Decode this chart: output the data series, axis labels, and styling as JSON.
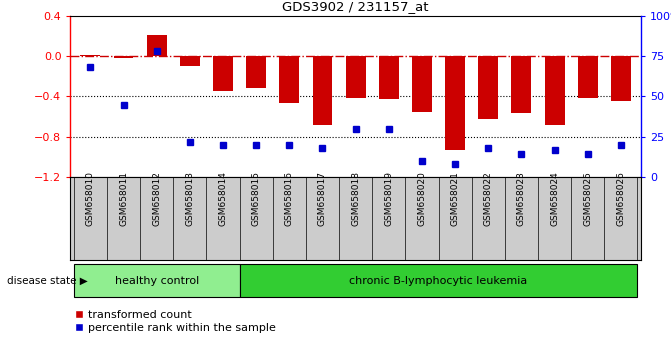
{
  "title": "GDS3902 / 231157_at",
  "samples": [
    "GSM658010",
    "GSM658011",
    "GSM658012",
    "GSM658013",
    "GSM658014",
    "GSM658015",
    "GSM658016",
    "GSM658017",
    "GSM658018",
    "GSM658019",
    "GSM658020",
    "GSM658021",
    "GSM658022",
    "GSM658023",
    "GSM658024",
    "GSM658025",
    "GSM658026"
  ],
  "red_values": [
    0.01,
    -0.02,
    0.21,
    -0.1,
    -0.35,
    -0.32,
    -0.46,
    -0.68,
    -0.42,
    -0.43,
    -0.55,
    -0.93,
    -0.62,
    -0.56,
    -0.68,
    -0.42,
    -0.45
  ],
  "blue_values": [
    68,
    45,
    78,
    22,
    20,
    20,
    20,
    18,
    30,
    30,
    10,
    8,
    18,
    14,
    17,
    14,
    20
  ],
  "healthy_count": 5,
  "healthy_label": "healthy control",
  "disease_label": "chronic B-lymphocytic leukemia",
  "disease_state_label": "disease state",
  "legend_red": "transformed count",
  "legend_blue": "percentile rank within the sample",
  "ylim_left": [
    -1.2,
    0.4
  ],
  "ylim_right": [
    0,
    100
  ],
  "yticks_left": [
    0.4,
    0.0,
    -0.4,
    -0.8,
    -1.2
  ],
  "yticks_right": [
    100,
    75,
    50,
    25,
    0
  ],
  "bar_color": "#CC0000",
  "dot_color": "#0000CC",
  "healthy_color": "#90EE90",
  "disease_color": "#32CD32",
  "bg_color": "#FFFFFF",
  "tick_label_bg": "#CCCCCC"
}
